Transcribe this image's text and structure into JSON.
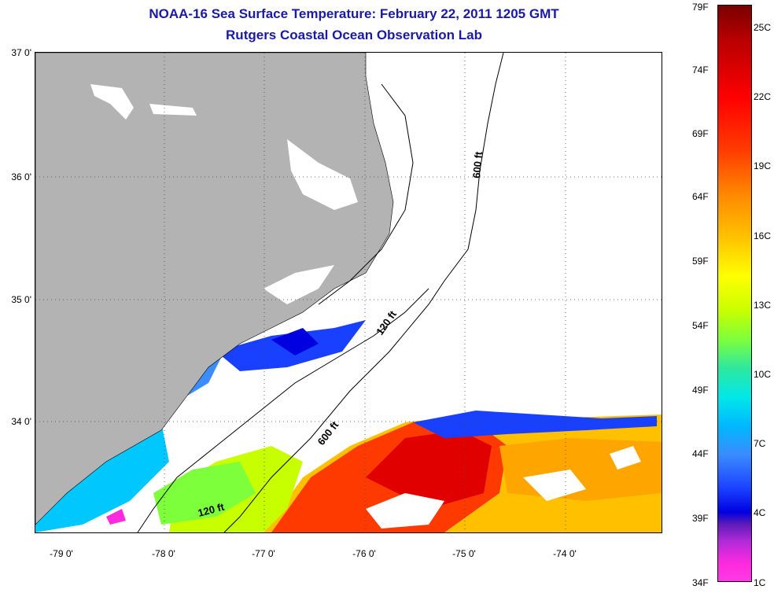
{
  "title": {
    "line1": "NOAA-16 Sea Surface Temperature:  February 22, 2011 1205 GMT",
    "line2": "Rutgers Coastal Ocean Observation Lab"
  },
  "axes": {
    "lat_labels": [
      "37 0'",
      "36 0'",
      "35 0'",
      "34 0'"
    ],
    "lon_labels": [
      "-79 0'",
      "-78 0'",
      "-77 0'",
      "-76 0'",
      "-75 0'",
      "-74 0'"
    ]
  },
  "contours": {
    "label_600_north": "600 ft",
    "label_120_mid": "120 ft",
    "label_600_south": "600 ft",
    "label_120_south": "120 ft"
  },
  "colorbar": {
    "f_labels": [
      "79F",
      "74F",
      "69F",
      "64F",
      "59F",
      "54F",
      "49F",
      "44F",
      "39F",
      "34F"
    ],
    "c_labels": [
      "25C",
      "22C",
      "19C",
      "16C",
      "13C",
      "10C",
      "7C",
      "4C",
      "1C"
    ]
  },
  "colors": {
    "land": "#b3b3b3",
    "no_data": "#ffffff",
    "title": "#1a1aa6"
  }
}
